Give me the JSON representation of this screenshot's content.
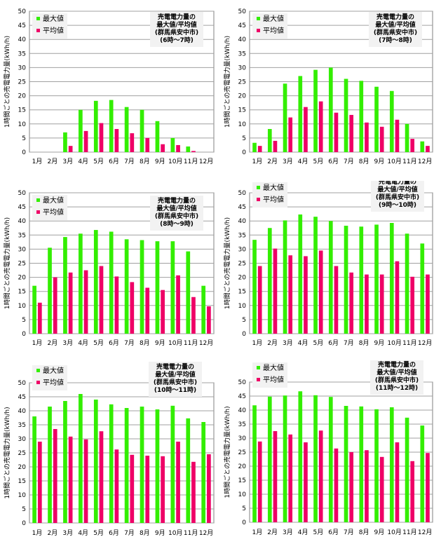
{
  "legend": {
    "max_label": "最大値",
    "avg_label": "平均値"
  },
  "colors": {
    "max": "#33ee00",
    "avg": "#ee0066",
    "grid": "#a0a0a0"
  },
  "chart_data": [
    {
      "type": "bar",
      "title_lines": [
        "売電電力量の",
        "最大値/平均値",
        "(群馬県安中市)",
        "(6時〜7時)"
      ],
      "ylabel": "1時間ごとの売電電力量(kWh/h)",
      "ylim": [
        0,
        50
      ],
      "yticks": [
        0,
        5,
        10,
        15,
        20,
        25,
        30,
        35,
        40,
        45,
        50
      ],
      "grid": true,
      "legend_position": "top-left",
      "categories": [
        "1月",
        "2月",
        "3月",
        "4月",
        "5月",
        "6月",
        "7月",
        "8月",
        "9月",
        "10月",
        "11月",
        "12月"
      ],
      "series": [
        {
          "name": "最大値",
          "values": [
            0,
            0,
            7.0,
            15.0,
            18.2,
            18.5,
            16.0,
            15.0,
            11.0,
            5.0,
            2.0,
            0
          ]
        },
        {
          "name": "平均値",
          "values": [
            0,
            0,
            2.2,
            7.5,
            10.3,
            8.2,
            6.7,
            5.0,
            2.8,
            2.5,
            0.4,
            0
          ]
        }
      ]
    },
    {
      "type": "bar",
      "title_lines": [
        "売電電力量の",
        "最大値/平均値",
        "(群馬県安中市)",
        "(7時〜8時)"
      ],
      "ylabel": "1時間ごとの売電電力量(kWh/h)",
      "ylim": [
        0,
        50
      ],
      "yticks": [
        0,
        5,
        10,
        15,
        20,
        25,
        30,
        35,
        40,
        45,
        50
      ],
      "grid": true,
      "legend_position": "top-left",
      "categories": [
        "1月",
        "2月",
        "3月",
        "4月",
        "5月",
        "6月",
        "7月",
        "8月",
        "9月",
        "10月",
        "11月",
        "12月"
      ],
      "series": [
        {
          "name": "最大値",
          "values": [
            3.3,
            8.2,
            24.3,
            27.0,
            29.2,
            30.0,
            26.0,
            25.3,
            23.2,
            21.7,
            10.0,
            3.8
          ]
        },
        {
          "name": "平均値",
          "values": [
            2.2,
            4.0,
            12.3,
            16.0,
            18.0,
            14.0,
            13.2,
            10.5,
            9.0,
            11.5,
            4.7,
            2.2
          ]
        }
      ]
    },
    {
      "type": "bar",
      "title_lines": [
        "売電電力量の",
        "最大値/平均値",
        "(群馬県安中市)",
        "(8時〜9時)"
      ],
      "ylabel": "1時間ごとの売電電力量(kWh/h)",
      "ylim": [
        0,
        50
      ],
      "yticks": [
        0,
        5,
        10,
        15,
        20,
        25,
        30,
        35,
        40,
        45,
        50
      ],
      "grid": true,
      "legend_position": "top-left",
      "categories": [
        "1月",
        "2月",
        "3月",
        "4月",
        "5月",
        "6月",
        "7月",
        "8月",
        "9月",
        "10月",
        "11月",
        "12月"
      ],
      "series": [
        {
          "name": "最大値",
          "values": [
            17.0,
            30.5,
            34.3,
            35.5,
            36.8,
            36.2,
            33.5,
            33.2,
            32.8,
            32.8,
            29.2,
            17.0
          ]
        },
        {
          "name": "平均値",
          "values": [
            11.0,
            20.0,
            21.7,
            22.5,
            24.0,
            20.3,
            18.3,
            16.3,
            15.5,
            20.7,
            13.0,
            9.7
          ]
        }
      ]
    },
    {
      "type": "bar",
      "title_lines": [
        "売電電力量の",
        "最大値/平均値",
        "(群馬県安中市)",
        "(9時〜10時)"
      ],
      "ylabel": "1時間ごとの売電電力量(kWh/h)",
      "ylim": [
        0,
        50
      ],
      "yticks": [
        0,
        5,
        10,
        15,
        20,
        25,
        30,
        35,
        40,
        45,
        50
      ],
      "grid": true,
      "legend_position": "top-left",
      "categories": [
        "1月",
        "2月",
        "3月",
        "4月",
        "5月",
        "6月",
        "7月",
        "8月",
        "9月",
        "10月",
        "11月",
        "12月"
      ],
      "series": [
        {
          "name": "最大値",
          "values": [
            33.3,
            37.5,
            40.2,
            42.3,
            41.5,
            40.0,
            38.3,
            38.0,
            38.7,
            39.3,
            35.5,
            32.0
          ]
        },
        {
          "name": "平均値",
          "values": [
            24.0,
            30.2,
            27.8,
            27.5,
            29.5,
            24.0,
            21.7,
            21.0,
            21.0,
            25.7,
            20.2,
            21.0
          ]
        }
      ]
    },
    {
      "type": "bar",
      "title_lines": [
        "売電電力量の",
        "最大値/平均値",
        "(群馬県安中市)",
        "(10時〜11時)"
      ],
      "ylabel": "1時間ごとの売電電力量(kWh/h)",
      "ylim": [
        0,
        50
      ],
      "yticks": [
        0,
        5,
        10,
        15,
        20,
        25,
        30,
        35,
        40,
        45,
        50
      ],
      "grid": true,
      "legend_position": "top-left",
      "categories": [
        "1月",
        "2月",
        "3月",
        "4月",
        "5月",
        "6月",
        "7月",
        "8月",
        "9月",
        "10月",
        "11月",
        "12月"
      ],
      "series": [
        {
          "name": "最大値",
          "values": [
            38.0,
            41.5,
            43.5,
            46.0,
            44.0,
            42.3,
            41.0,
            41.5,
            40.5,
            41.8,
            37.3,
            36.0
          ]
        },
        {
          "name": "平均値",
          "values": [
            29.0,
            33.5,
            30.8,
            29.8,
            32.7,
            26.2,
            24.3,
            24.0,
            23.8,
            29.0,
            21.8,
            24.5
          ]
        }
      ]
    },
    {
      "type": "bar",
      "title_lines": [
        "売電電力量の",
        "最大値/平均値",
        "(群馬県安中市)",
        "(11時〜12時)"
      ],
      "ylabel": "1時間ごとの売電電力量(kWh/h)",
      "ylim": [
        0,
        50
      ],
      "yticks": [
        0,
        5,
        10,
        15,
        20,
        25,
        30,
        35,
        40,
        45,
        50
      ],
      "grid": true,
      "legend_position": "top-left",
      "categories": [
        "1月",
        "2月",
        "3月",
        "4月",
        "5月",
        "6月",
        "7月",
        "8月",
        "9月",
        "10月",
        "11月",
        "12月"
      ],
      "series": [
        {
          "name": "最大値",
          "values": [
            41.7,
            44.8,
            45.2,
            46.7,
            45.3,
            44.7,
            41.5,
            41.3,
            40.3,
            41.0,
            37.3,
            34.5
          ]
        },
        {
          "name": "平均値",
          "values": [
            28.8,
            32.5,
            31.3,
            28.5,
            32.7,
            26.3,
            25.0,
            25.7,
            23.3,
            28.5,
            21.8,
            24.7
          ]
        }
      ]
    }
  ]
}
